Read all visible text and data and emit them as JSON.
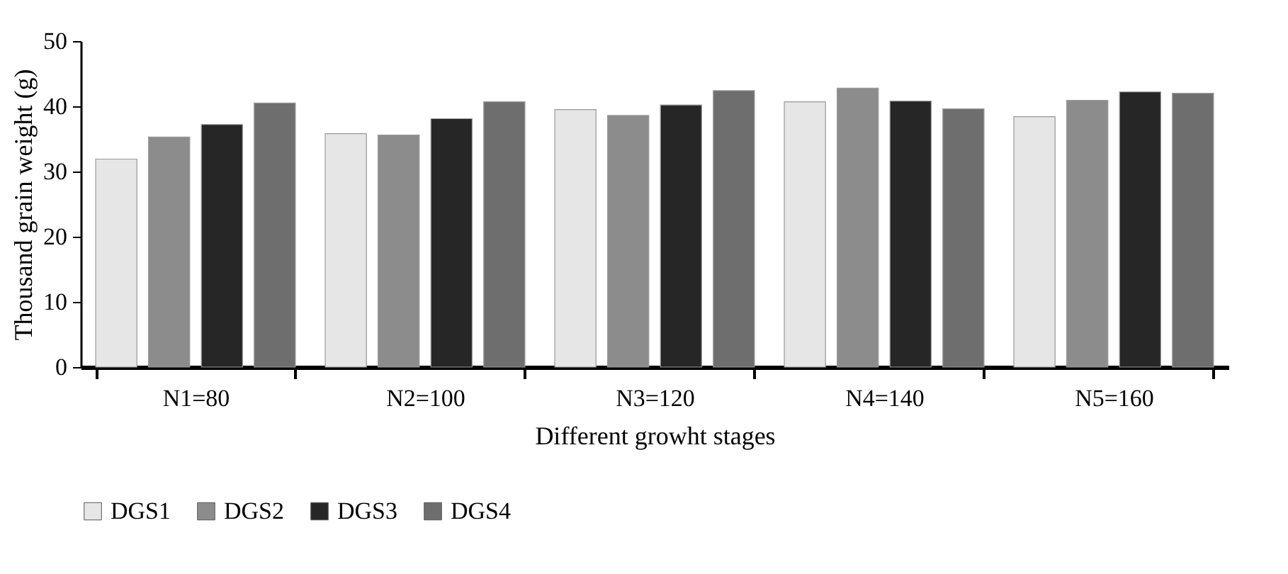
{
  "chart_data": {
    "type": "bar",
    "xlabel": "Different growht stages",
    "ylabel": "Thousand grain weight (g)",
    "categories": [
      "N1=80",
      "N2=100",
      "N3=120",
      "N4=140",
      "N5=160"
    ],
    "series": [
      {
        "name": "DGS1",
        "color": "#e6e6e6",
        "values": [
          31.9,
          35.8,
          39.5,
          40.7,
          38.4
        ]
      },
      {
        "name": "DGS2",
        "color": "#8c8c8c",
        "values": [
          35.3,
          35.6,
          38.6,
          42.8,
          40.9
        ]
      },
      {
        "name": "DGS3",
        "color": "#262626",
        "values": [
          37.2,
          38.1,
          40.2,
          40.8,
          42.2
        ]
      },
      {
        "name": "DGS4",
        "color": "#6e6e6e",
        "values": [
          40.5,
          40.7,
          42.4,
          39.6,
          42.0
        ]
      }
    ],
    "ylim": [
      0,
      50
    ],
    "yticks": [
      0,
      10,
      20,
      30,
      40,
      50
    ],
    "grid": false,
    "legend": "bottom"
  }
}
